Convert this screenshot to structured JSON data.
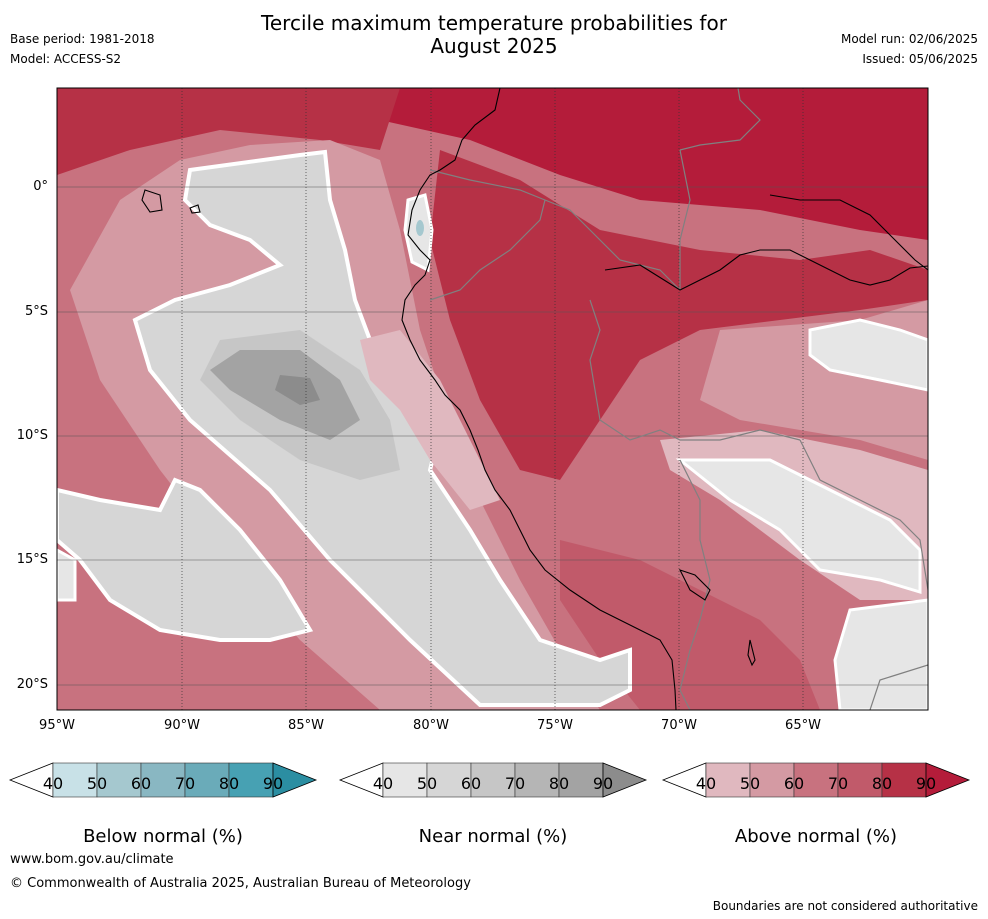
{
  "header": {
    "title_line1": "Tercile maximum temperature probabilities for",
    "title_line2": "August 2025",
    "base_period": "Base period: 1981-2018",
    "model": "Model: ACCESS-S2",
    "model_run": "Model run: 02/06/2025",
    "issued": "Issued: 05/06/2025"
  },
  "map": {
    "x_ticks": [
      "95°W",
      "90°W",
      "85°W",
      "80°W",
      "75°W",
      "70°W",
      "65°W"
    ],
    "y_ticks": [
      "0°",
      "5°S",
      "10°S",
      "15°S",
      "20°S"
    ],
    "region": "Peru / Ecuador / Eastern Pacific"
  },
  "colorbars": [
    {
      "label": "Below normal (%)",
      "ticks": [
        "40",
        "50",
        "60",
        "70",
        "80",
        "90"
      ],
      "colors": [
        "#ffffff",
        "#c8e1e7",
        "#a5c8cf",
        "#89b7c2",
        "#6aabb9",
        "#47a1b3",
        "#2b8ea2"
      ]
    },
    {
      "label": "Near normal (%)",
      "ticks": [
        "40",
        "50",
        "60",
        "70",
        "80",
        "90"
      ],
      "colors": [
        "#ffffff",
        "#e6e6e6",
        "#d6d6d6",
        "#c6c6c6",
        "#b5b5b5",
        "#a3a3a3",
        "#8c8c8c"
      ]
    },
    {
      "label": "Above normal (%)",
      "ticks": [
        "40",
        "50",
        "60",
        "70",
        "80",
        "90"
      ],
      "colors": [
        "#ffffff",
        "#e0b8bf",
        "#d49aa3",
        "#c8727f",
        "#c15a6a",
        "#b63146",
        "#b41c3a"
      ]
    }
  ],
  "footer": {
    "website": "www.bom.gov.au/climate",
    "copyright": "© Commonwealth of Australia 2025, Australian Bureau of Meteorology",
    "disclaimer": "Boundaries are not considered authoritative"
  }
}
